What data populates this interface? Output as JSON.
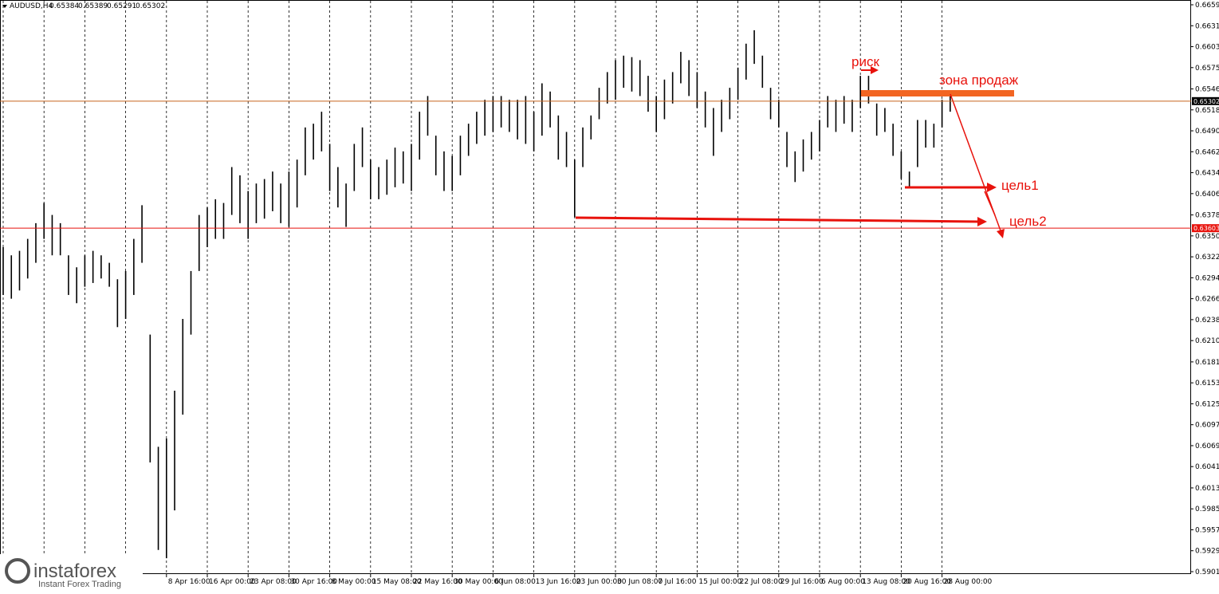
{
  "chart_data": {
    "type": "range",
    "title": "AUDUSD,H4",
    "header_values": [
      0.65384,
      0.65389,
      0.65291,
      0.65302
    ],
    "categories": [
      null,
      null,
      null,
      null,
      null,
      null,
      null,
      null,
      null,
      null,
      null,
      null,
      null,
      null,
      null,
      null,
      null,
      null,
      null,
      null,
      "8 Apr 16:00",
      null,
      null,
      null,
      null,
      "16 Apr 00:00",
      null,
      null,
      null,
      null,
      "23 Apr 08:00",
      null,
      null,
      null,
      null,
      "30 Apr 16:00",
      null,
      null,
      null,
      null,
      "8 May 00:00",
      null,
      null,
      null,
      null,
      "15 May 08:00",
      null,
      null,
      null,
      null,
      "22 May 16:00",
      null,
      null,
      null,
      null,
      "30 May 00:00",
      null,
      null,
      null,
      null,
      "6 Jun 08:00",
      null,
      null,
      null,
      null,
      "13 Jun 16:00",
      null,
      null,
      null,
      null,
      "23 Jun 00:00",
      null,
      null,
      null,
      null,
      "30 Jun 08:00",
      null,
      null,
      null,
      null,
      "7 Jul 16:00",
      null,
      null,
      null,
      null,
      "15 Jul 00:00",
      null,
      null,
      null,
      null,
      "22 Jul 08:00",
      null,
      null,
      null,
      null,
      "29 Jul 16:00",
      null,
      null,
      null,
      null,
      "6 Aug 00:00",
      null,
      null,
      null,
      null,
      "13 Aug 08:00",
      null,
      null,
      null,
      null,
      "20 Aug 16:00",
      null,
      null,
      null,
      null,
      "28 Aug 00:00",
      null
    ],
    "high": [
      0.6335,
      0.6324,
      0.633,
      0.6346,
      0.6367,
      0.6394,
      0.6378,
      0.6367,
      0.6324,
      0.6308,
      0.6324,
      0.633,
      0.6324,
      0.6314,
      0.6292,
      0.6303,
      0.6346,
      0.6391,
      0.6218,
      0.6068,
      0.6079,
      0.6143,
      0.6239,
      0.6303,
      0.6378,
      0.6388,
      0.6399,
      0.6394,
      0.6442,
      0.6431,
      0.641,
      0.642,
      0.6426,
      0.6436,
      0.642,
      0.6436,
      0.6452,
      0.6495,
      0.65,
      0.6516,
      0.6473,
      0.6442,
      0.642,
      0.6473,
      0.6495,
      0.6452,
      0.6442,
      0.6452,
      0.6468,
      0.6463,
      0.6473,
      0.6516,
      0.6537,
      0.6484,
      0.6463,
      0.6457,
      0.6484,
      0.65,
      0.6516,
      0.6532,
      0.6537,
      0.6537,
      0.6532,
      0.6532,
      0.6537,
      0.6516,
      0.6554,
      0.6543,
      0.6511,
      0.6489,
      0.6452,
      0.6495,
      0.6511,
      0.6548,
      0.6569,
      0.6585,
      0.6591,
      0.6589,
      0.6585,
      0.6564,
      0.6537,
      0.6559,
      0.6569,
      0.6596,
      0.6585,
      0.6569,
      0.6543,
      0.6521,
      0.6532,
      0.6548,
      0.6575,
      0.6607,
      0.6625,
      0.6591,
      0.6548,
      0.6532,
      0.6489,
      0.6463,
      0.6479,
      0.6489,
      0.6505,
      0.6537,
      0.6532,
      0.6537,
      0.6532,
      0.6564,
      0.6564,
      0.6527,
      0.6521,
      0.65,
      0.6463,
      0.6436,
      0.6505,
      0.6505,
      0.65,
      0.6532,
      0.6543
    ],
    "low": [
      0.6271,
      0.6266,
      0.6277,
      0.6293,
      0.6314,
      0.6346,
      0.6324,
      0.6324,
      0.6271,
      0.626,
      0.6282,
      0.6287,
      0.6293,
      0.6282,
      0.6228,
      0.6239,
      0.6271,
      0.6314,
      0.6047,
      0.593,
      0.5919,
      0.5983,
      0.6111,
      0.6218,
      0.6303,
      0.6335,
      0.6346,
      0.6346,
      0.6378,
      0.6367,
      0.6346,
      0.6367,
      0.6373,
      0.6383,
      0.6367,
      0.6362,
      0.6388,
      0.6431,
      0.6452,
      0.6463,
      0.641,
      0.6388,
      0.6362,
      0.641,
      0.6442,
      0.6399,
      0.6399,
      0.6405,
      0.6415,
      0.642,
      0.641,
      0.6452,
      0.6484,
      0.6431,
      0.641,
      0.641,
      0.6431,
      0.6457,
      0.6473,
      0.6484,
      0.6489,
      0.6495,
      0.6489,
      0.6479,
      0.6473,
      0.6463,
      0.6484,
      0.6495,
      0.6452,
      0.6442,
      0.6375,
      0.6442,
      0.6479,
      0.6506,
      0.6527,
      0.6532,
      0.6548,
      0.6543,
      0.6537,
      0.6516,
      0.6489,
      0.6506,
      0.6527,
      0.6554,
      0.6537,
      0.6521,
      0.6495,
      0.6457,
      0.6489,
      0.6506,
      0.6532,
      0.6559,
      0.658,
      0.6548,
      0.6506,
      0.6495,
      0.6442,
      0.6422,
      0.6436,
      0.6452,
      0.6463,
      0.6495,
      0.6489,
      0.65,
      0.6489,
      0.6521,
      0.6527,
      0.6484,
      0.6489,
      0.6457,
      0.6426,
      0.6415,
      0.6442,
      0.6468,
      0.6468,
      0.6495,
      0.6516
    ],
    "color": "#000000",
    "ylim": [
      0.58978,
      0.66654
    ],
    "yticks": [
      {
        "value": 0.6659,
        "label": "0.66590"
      },
      {
        "value": 0.6631,
        "label": "0.66310"
      },
      {
        "value": 0.6603,
        "label": "0.66030"
      },
      {
        "value": 0.6575,
        "label": "0.65750"
      },
      0.65465,
      0.65185,
      0.64905,
      0.64625,
      0.64345,
      0.64065,
      {
        "value": 0.6378,
        "label": "0.63780"
      },
      {
        "value": 0.635,
        "label": "0.63500"
      },
      {
        "value": 0.6322,
        "label": "0.63220"
      },
      {
        "value": 0.6294,
        "label": "0.62940"
      },
      {
        "value": 0.6266,
        "label": "0.62660"
      },
      {
        "value": 0.6238,
        "label": "0.62380"
      },
      {
        "value": 0.621,
        "label": "0.62100"
      },
      0.61815,
      0.61535,
      0.61255,
      0.60975,
      0.60695,
      0.60415,
      {
        "value": 0.6013,
        "label": "0.60130"
      },
      {
        "value": 0.5985,
        "label": "0.59850"
      },
      {
        "value": 0.5957,
        "label": "0.59570"
      },
      {
        "value": 0.5929,
        "label": "0.59290"
      },
      {
        "value": 0.5901,
        "label": "0.59010"
      }
    ],
    "price_lines": [
      {
        "value": 0.65302,
        "color": "#c8641e"
      },
      {
        "value": 0.63603,
        "color": "#e8120c"
      }
    ],
    "annotations": [
      "риск",
      "зона продаж",
      "цель1",
      "цель2"
    ]
  },
  "watermark": {
    "brand": "instaforex",
    "tagline": "Instant Forex Trading"
  }
}
